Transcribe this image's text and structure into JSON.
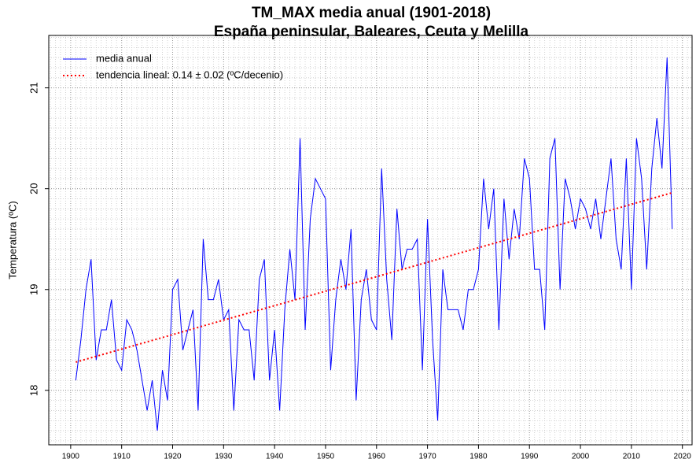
{
  "chart_data": {
    "type": "line",
    "title": "TM_MAX media anual (1901-2018)",
    "subtitle": "España peninsular, Baleares, Ceuta y Melilla",
    "ylabel": "Temperatura (ºC)",
    "x": [
      1901,
      1902,
      1903,
      1904,
      1905,
      1906,
      1907,
      1908,
      1909,
      1910,
      1911,
      1912,
      1913,
      1914,
      1915,
      1916,
      1917,
      1918,
      1919,
      1920,
      1921,
      1922,
      1923,
      1924,
      1925,
      1926,
      1927,
      1928,
      1929,
      1930,
      1931,
      1932,
      1933,
      1934,
      1935,
      1936,
      1937,
      1938,
      1939,
      1940,
      1941,
      1942,
      1943,
      1944,
      1945,
      1946,
      1947,
      1948,
      1949,
      1950,
      1951,
      1952,
      1953,
      1954,
      1955,
      1956,
      1957,
      1958,
      1959,
      1960,
      1961,
      1962,
      1963,
      1964,
      1965,
      1966,
      1967,
      1968,
      1969,
      1970,
      1971,
      1972,
      1973,
      1974,
      1975,
      1976,
      1977,
      1978,
      1979,
      1980,
      1981,
      1982,
      1983,
      1984,
      1985,
      1986,
      1987,
      1988,
      1989,
      1990,
      1991,
      1992,
      1993,
      1994,
      1995,
      1996,
      1997,
      1998,
      1999,
      2000,
      2001,
      2002,
      2003,
      2004,
      2005,
      2006,
      2007,
      2008,
      2009,
      2010,
      2011,
      2012,
      2013,
      2014,
      2015,
      2016,
      2017,
      2018
    ],
    "series": [
      {
        "name": "media anual",
        "color": "#0000ff",
        "style": "solid",
        "values": [
          18.1,
          18.5,
          19.0,
          19.3,
          18.3,
          18.6,
          18.6,
          18.9,
          18.3,
          18.2,
          18.7,
          18.6,
          18.4,
          18.1,
          17.8,
          18.1,
          17.6,
          18.2,
          17.9,
          19.0,
          19.1,
          18.4,
          18.6,
          18.8,
          17.8,
          19.5,
          18.9,
          18.9,
          19.1,
          18.7,
          18.8,
          17.8,
          18.7,
          18.6,
          18.6,
          18.1,
          19.1,
          19.3,
          18.1,
          18.6,
          17.8,
          18.8,
          19.4,
          18.9,
          20.5,
          18.6,
          19.7,
          20.1,
          20.0,
          19.9,
          18.2,
          18.9,
          19.3,
          19.0,
          19.6,
          17.9,
          18.9,
          19.2,
          18.7,
          18.6,
          20.2,
          19.1,
          18.5,
          19.8,
          19.2,
          19.4,
          19.4,
          19.5,
          18.2,
          19.7,
          18.5,
          17.7,
          19.2,
          18.8,
          18.8,
          18.8,
          18.6,
          19.0,
          19.0,
          19.2,
          20.1,
          19.6,
          20.0,
          18.6,
          19.9,
          19.3,
          19.8,
          19.5,
          20.3,
          20.1,
          19.2,
          19.2,
          18.6,
          20.3,
          20.5,
          19.0,
          20.1,
          19.9,
          19.6,
          19.9,
          19.8,
          19.6,
          19.9,
          19.5,
          19.9,
          20.3,
          19.5,
          19.2,
          20.3,
          19.0,
          20.5,
          20.1,
          19.2,
          20.2,
          20.7,
          20.2,
          21.3,
          19.6
        ]
      },
      {
        "name": "tendencia lineal: 0.14 ± 0.02 (ºC/decenio)",
        "color": "#ff0000",
        "style": "dotted",
        "x": [
          1901,
          2018
        ],
        "values": [
          18.28,
          19.96
        ]
      }
    ],
    "xlim": [
      1895.7,
      2021.9
    ],
    "ylim": [
      17.46,
      21.52
    ],
    "xticks": [
      1900,
      1910,
      1920,
      1930,
      1940,
      1950,
      1960,
      1970,
      1980,
      1990,
      2000,
      2010,
      2020
    ],
    "yticks": [
      18,
      19,
      20,
      21
    ],
    "grid": true,
    "legend": "top-left"
  }
}
